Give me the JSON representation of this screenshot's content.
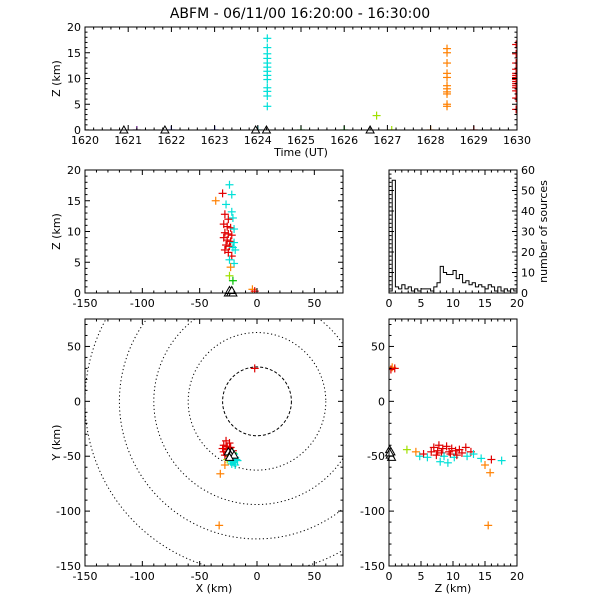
{
  "title": "ABFM - 06/11/00 16:20:00 - 16:30:00",
  "colors": {
    "black": "#000000",
    "navy": "#1a1a80",
    "purple": "#6a1a90",
    "blue": "#1a1ad8",
    "cyan": "#00e0d8",
    "green": "#00c000",
    "lime": "#a0e000",
    "orange": "#ff8000",
    "red": "#e00000",
    "darkred": "#c00000"
  },
  "chart_data": [
    {
      "name": "time-height",
      "type": "scatter",
      "xlabel": "Time (UT)",
      "ylabel": "Z (km)",
      "xlim": [
        1620,
        1630
      ],
      "ylim": [
        0,
        20
      ],
      "xticks": [
        "1620",
        "1621",
        "1622",
        "1623",
        "1624",
        "1625",
        "1626",
        "1627",
        "1628",
        "1629",
        "1630"
      ],
      "yticks": [
        "0",
        "5",
        "10",
        "15",
        "20"
      ],
      "points": [
        {
          "x": 1620.0,
          "y": 0,
          "c": "black"
        },
        {
          "x": 1621.2,
          "y": 0,
          "c": "purple"
        },
        {
          "x": 1622.0,
          "y": 0,
          "c": "blue"
        },
        {
          "x": 1623.0,
          "y": 0,
          "c": "blue"
        },
        {
          "x": 1624.0,
          "y": 0,
          "c": "cyan"
        },
        {
          "x": 1625.0,
          "y": 0,
          "c": "green"
        },
        {
          "x": 1626.0,
          "y": 0,
          "c": "green"
        },
        {
          "x": 1627.1,
          "y": 0,
          "c": "lime"
        },
        {
          "x": 1628.0,
          "y": 0,
          "c": "orange"
        },
        {
          "x": 1629.0,
          "y": 0,
          "c": "red"
        },
        {
          "x": 1624.22,
          "y": 17.8,
          "c": "cyan"
        },
        {
          "x": 1624.22,
          "y": 16.0,
          "c": "cyan"
        },
        {
          "x": 1624.22,
          "y": 14.8,
          "c": "cyan"
        },
        {
          "x": 1624.22,
          "y": 13.9,
          "c": "cyan"
        },
        {
          "x": 1624.22,
          "y": 13.0,
          "c": "cyan"
        },
        {
          "x": 1624.22,
          "y": 12.2,
          "c": "cyan"
        },
        {
          "x": 1624.22,
          "y": 11.4,
          "c": "cyan"
        },
        {
          "x": 1624.22,
          "y": 10.6,
          "c": "cyan"
        },
        {
          "x": 1624.22,
          "y": 9.8,
          "c": "cyan"
        },
        {
          "x": 1624.22,
          "y": 8.2,
          "c": "cyan"
        },
        {
          "x": 1624.22,
          "y": 7.5,
          "c": "cyan"
        },
        {
          "x": 1624.22,
          "y": 6.6,
          "c": "cyan"
        },
        {
          "x": 1624.22,
          "y": 4.6,
          "c": "cyan"
        },
        {
          "x": 1626.75,
          "y": 2.8,
          "c": "lime"
        },
        {
          "x": 1628.38,
          "y": 15.8,
          "c": "orange"
        },
        {
          "x": 1628.38,
          "y": 15.0,
          "c": "orange"
        },
        {
          "x": 1628.38,
          "y": 13.0,
          "c": "orange"
        },
        {
          "x": 1628.38,
          "y": 11.0,
          "c": "orange"
        },
        {
          "x": 1628.38,
          "y": 10.2,
          "c": "orange"
        },
        {
          "x": 1628.38,
          "y": 8.6,
          "c": "orange"
        },
        {
          "x": 1628.38,
          "y": 8.0,
          "c": "orange"
        },
        {
          "x": 1628.38,
          "y": 7.4,
          "c": "orange"
        },
        {
          "x": 1628.38,
          "y": 7.0,
          "c": "orange"
        },
        {
          "x": 1628.38,
          "y": 5.0,
          "c": "orange"
        },
        {
          "x": 1628.38,
          "y": 4.6,
          "c": "orange"
        },
        {
          "x": 1629.98,
          "y": 16.6,
          "c": "red"
        },
        {
          "x": 1629.98,
          "y": 14.8,
          "c": "red"
        },
        {
          "x": 1629.98,
          "y": 13.0,
          "c": "red"
        },
        {
          "x": 1629.98,
          "y": 11.8,
          "c": "red"
        },
        {
          "x": 1629.98,
          "y": 11.0,
          "c": "red"
        },
        {
          "x": 1629.98,
          "y": 10.6,
          "c": "red"
        },
        {
          "x": 1629.98,
          "y": 10.2,
          "c": "red"
        },
        {
          "x": 1629.98,
          "y": 9.8,
          "c": "red"
        },
        {
          "x": 1629.98,
          "y": 9.4,
          "c": "red"
        },
        {
          "x": 1629.98,
          "y": 9.0,
          "c": "red"
        },
        {
          "x": 1629.98,
          "y": 8.6,
          "c": "red"
        },
        {
          "x": 1629.98,
          "y": 8.2,
          "c": "red"
        },
        {
          "x": 1629.98,
          "y": 7.6,
          "c": "red"
        },
        {
          "x": 1629.98,
          "y": 6.2,
          "c": "red"
        },
        {
          "x": 1629.98,
          "y": 4.0,
          "c": "red"
        }
      ],
      "triangles": [
        {
          "x": 1620.9,
          "y": 0
        },
        {
          "x": 1621.85,
          "y": 0
        },
        {
          "x": 1623.95,
          "y": 0
        },
        {
          "x": 1624.2,
          "y": 0
        },
        {
          "x": 1626.6,
          "y": 0
        }
      ]
    },
    {
      "name": "x-height",
      "type": "scatter",
      "xlabel": "",
      "ylabel": "Z (km)",
      "xlim": [
        -150,
        75
      ],
      "ylim": [
        0,
        20
      ],
      "xticks": [
        "-150",
        "-100",
        "-50",
        "0",
        "50"
      ],
      "yticks": [
        "0",
        "5",
        "10",
        "15",
        "20"
      ],
      "points": [
        {
          "x": -24,
          "y": 17.6,
          "c": "cyan"
        },
        {
          "x": -22,
          "y": 16.0,
          "c": "cyan"
        },
        {
          "x": -36,
          "y": 15.0,
          "c": "orange"
        },
        {
          "x": -30,
          "y": 16.2,
          "c": "red"
        },
        {
          "x": -27,
          "y": 14.4,
          "c": "cyan"
        },
        {
          "x": -22,
          "y": 13.2,
          "c": "cyan"
        },
        {
          "x": -28,
          "y": 12.8,
          "c": "red"
        },
        {
          "x": -25,
          "y": 12.0,
          "c": "red"
        },
        {
          "x": -21,
          "y": 12.2,
          "c": "cyan"
        },
        {
          "x": -29,
          "y": 11.2,
          "c": "red"
        },
        {
          "x": -26,
          "y": 10.8,
          "c": "red"
        },
        {
          "x": -23,
          "y": 10.6,
          "c": "red"
        },
        {
          "x": -20,
          "y": 10.4,
          "c": "cyan"
        },
        {
          "x": -28,
          "y": 9.8,
          "c": "red"
        },
        {
          "x": -25,
          "y": 9.6,
          "c": "red"
        },
        {
          "x": -22,
          "y": 9.4,
          "c": "red"
        },
        {
          "x": -29,
          "y": 9.0,
          "c": "red"
        },
        {
          "x": -26,
          "y": 8.6,
          "c": "red"
        },
        {
          "x": -23,
          "y": 8.4,
          "c": "red"
        },
        {
          "x": -20,
          "y": 8.2,
          "c": "cyan"
        },
        {
          "x": -27,
          "y": 7.8,
          "c": "red"
        },
        {
          "x": -24,
          "y": 7.6,
          "c": "red"
        },
        {
          "x": -21,
          "y": 7.4,
          "c": "cyan"
        },
        {
          "x": -28,
          "y": 7.0,
          "c": "red"
        },
        {
          "x": -25,
          "y": 6.6,
          "c": "red"
        },
        {
          "x": -19,
          "y": 7.0,
          "c": "cyan"
        },
        {
          "x": -22,
          "y": 6.0,
          "c": "red"
        },
        {
          "x": -24,
          "y": 5.4,
          "c": "cyan"
        },
        {
          "x": -20,
          "y": 4.8,
          "c": "cyan"
        },
        {
          "x": -23,
          "y": 4.2,
          "c": "orange"
        },
        {
          "x": -24,
          "y": 2.8,
          "c": "lime"
        },
        {
          "x": -21,
          "y": 2.0,
          "c": "green"
        },
        {
          "x": -4,
          "y": 0.6,
          "c": "orange"
        },
        {
          "x": -2,
          "y": 0.3,
          "c": "red"
        },
        {
          "x": -22,
          "y": 0,
          "c": "cyan"
        }
      ],
      "triangles": [
        {
          "x": -25,
          "y": 0
        },
        {
          "x": -23,
          "y": 0
        },
        {
          "x": -21,
          "y": 0
        },
        {
          "x": -24,
          "y": 0.4
        },
        {
          "x": -22,
          "y": 0.4
        }
      ]
    },
    {
      "name": "histogram",
      "type": "bar",
      "xlabel": "",
      "ylabel": "number of sources",
      "xlim": [
        0,
        20
      ],
      "ylim": [
        0,
        60
      ],
      "xticks": [
        "0",
        "5",
        "10",
        "15",
        "20"
      ],
      "yticks": [
        "0",
        "10",
        "20",
        "30",
        "40",
        "50",
        "60"
      ],
      "bin_width": 0.5,
      "bin_start": 0,
      "values": [
        1,
        55,
        3,
        2,
        4,
        2,
        3,
        1,
        2,
        1,
        2,
        2,
        2,
        1,
        3,
        5,
        13,
        10,
        9,
        9,
        11,
        7,
        9,
        5,
        6,
        4,
        5,
        3,
        4,
        3,
        2,
        4,
        3,
        1,
        3,
        1,
        2,
        1,
        2,
        1
      ]
    },
    {
      "name": "plan-view",
      "type": "scatter",
      "xlabel": "X (km)",
      "ylabel": "Y (km)",
      "xlim": [
        -150,
        75
      ],
      "ylim": [
        -150,
        75
      ],
      "xticks": [
        "-150",
        "-100",
        "-50",
        "0",
        "50"
      ],
      "yticks": [
        "-150",
        "-100",
        "-50",
        "0",
        "50"
      ],
      "range_rings_km": [
        30,
        60,
        90,
        120,
        150
      ],
      "points": [
        {
          "x": -2,
          "y": 30,
          "c": "red"
        },
        {
          "x": -33,
          "y": -113,
          "c": "orange"
        },
        {
          "x": -32,
          "y": -66,
          "c": "orange"
        },
        {
          "x": -28,
          "y": -58,
          "c": "orange"
        },
        {
          "x": -27,
          "y": -36,
          "c": "red"
        },
        {
          "x": -24,
          "y": -38,
          "c": "red"
        },
        {
          "x": -29,
          "y": -40,
          "c": "red"
        },
        {
          "x": -26,
          "y": -41,
          "c": "red"
        },
        {
          "x": -23,
          "y": -42,
          "c": "red"
        },
        {
          "x": -30,
          "y": -43,
          "c": "red"
        },
        {
          "x": -27,
          "y": -44,
          "c": "red"
        },
        {
          "x": -24,
          "y": -44,
          "c": "red"
        },
        {
          "x": -21,
          "y": -45,
          "c": "red"
        },
        {
          "x": -29,
          "y": -46,
          "c": "red"
        },
        {
          "x": -26,
          "y": -47,
          "c": "red"
        },
        {
          "x": -23,
          "y": -47,
          "c": "red"
        },
        {
          "x": -20,
          "y": -48,
          "c": "cyan"
        },
        {
          "x": -28,
          "y": -49,
          "c": "red"
        },
        {
          "x": -25,
          "y": -50,
          "c": "red"
        },
        {
          "x": -22,
          "y": -50,
          "c": "cyan"
        },
        {
          "x": -19,
          "y": -51,
          "c": "cyan"
        },
        {
          "x": -24,
          "y": -52,
          "c": "cyan"
        },
        {
          "x": -21,
          "y": -53,
          "c": "cyan"
        },
        {
          "x": -18,
          "y": -53,
          "c": "cyan"
        },
        {
          "x": -23,
          "y": -55,
          "c": "cyan"
        },
        {
          "x": -20,
          "y": -56,
          "c": "cyan"
        },
        {
          "x": -17,
          "y": -54,
          "c": "cyan"
        },
        {
          "x": -22,
          "y": -57,
          "c": "cyan"
        },
        {
          "x": -19,
          "y": -58,
          "c": "cyan"
        },
        {
          "x": -26,
          "y": -53,
          "c": "lime"
        },
        {
          "x": -21,
          "y": -47,
          "c": "green"
        }
      ],
      "triangles": [
        {
          "x": -25,
          "y": -46
        },
        {
          "x": -22,
          "y": -46
        },
        {
          "x": -23,
          "y": -49
        },
        {
          "x": -20,
          "y": -49
        },
        {
          "x": -24,
          "y": -51
        }
      ]
    },
    {
      "name": "height-y",
      "type": "scatter",
      "xlabel": "Z (km)",
      "ylabel": "",
      "xlim": [
        0,
        20
      ],
      "ylim": [
        -150,
        75
      ],
      "xticks": [
        "0",
        "5",
        "10",
        "15",
        "20"
      ],
      "yticks": [
        "-150",
        "-100",
        "-50",
        "0",
        "50"
      ],
      "points": [
        {
          "x": 0.5,
          "y": 31,
          "c": "orange"
        },
        {
          "x": 0.9,
          "y": 30,
          "c": "red"
        },
        {
          "x": 0.3,
          "y": 29,
          "c": "red"
        },
        {
          "x": 15.5,
          "y": -113,
          "c": "orange"
        },
        {
          "x": 15.8,
          "y": -65,
          "c": "orange"
        },
        {
          "x": 15.0,
          "y": -58,
          "c": "orange"
        },
        {
          "x": 2.8,
          "y": -44,
          "c": "lime"
        },
        {
          "x": 4.2,
          "y": -46,
          "c": "orange"
        },
        {
          "x": 4.8,
          "y": -50,
          "c": "cyan"
        },
        {
          "x": 5.4,
          "y": -48,
          "c": "red"
        },
        {
          "x": 6.0,
          "y": -51,
          "c": "cyan"
        },
        {
          "x": 6.6,
          "y": -46,
          "c": "red"
        },
        {
          "x": 7.0,
          "y": -42,
          "c": "red"
        },
        {
          "x": 7.4,
          "y": -49,
          "c": "red"
        },
        {
          "x": 7.6,
          "y": -45,
          "c": "red"
        },
        {
          "x": 7.8,
          "y": -40,
          "c": "red"
        },
        {
          "x": 8.2,
          "y": -47,
          "c": "red"
        },
        {
          "x": 8.4,
          "y": -43,
          "c": "red"
        },
        {
          "x": 8.6,
          "y": -50,
          "c": "cyan"
        },
        {
          "x": 9.0,
          "y": -41,
          "c": "red"
        },
        {
          "x": 9.4,
          "y": -46,
          "c": "red"
        },
        {
          "x": 9.6,
          "y": -48,
          "c": "red"
        },
        {
          "x": 9.8,
          "y": -43,
          "c": "red"
        },
        {
          "x": 10.2,
          "y": -51,
          "c": "cyan"
        },
        {
          "x": 10.4,
          "y": -45,
          "c": "red"
        },
        {
          "x": 10.6,
          "y": -49,
          "c": "red"
        },
        {
          "x": 11.0,
          "y": -44,
          "c": "red"
        },
        {
          "x": 11.4,
          "y": -47,
          "c": "red"
        },
        {
          "x": 12.0,
          "y": -42,
          "c": "red"
        },
        {
          "x": 12.2,
          "y": -50,
          "c": "cyan"
        },
        {
          "x": 12.8,
          "y": -46,
          "c": "red"
        },
        {
          "x": 13.2,
          "y": -48,
          "c": "cyan"
        },
        {
          "x": 14.4,
          "y": -52,
          "c": "cyan"
        },
        {
          "x": 16.0,
          "y": -53,
          "c": "red"
        },
        {
          "x": 17.6,
          "y": -54,
          "c": "cyan"
        },
        {
          "x": 8.0,
          "y": -55,
          "c": "cyan"
        },
        {
          "x": 9.2,
          "y": -56,
          "c": "cyan"
        }
      ],
      "triangles": [
        {
          "x": 0.1,
          "y": -44
        },
        {
          "x": 0.3,
          "y": -46
        },
        {
          "x": 0.2,
          "y": -49
        },
        {
          "x": 0.4,
          "y": -51
        },
        {
          "x": 0.1,
          "y": -47
        }
      ]
    }
  ]
}
